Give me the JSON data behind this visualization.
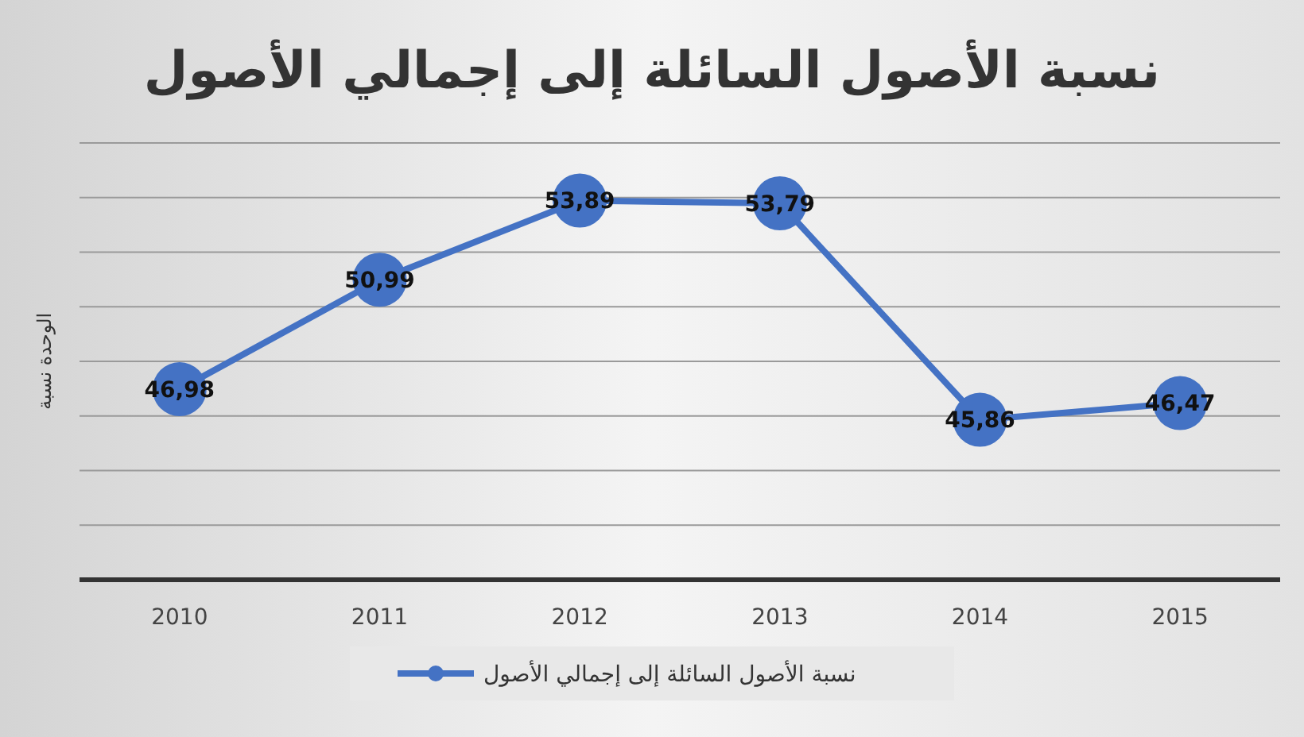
{
  "chart_data": {
    "type": "line",
    "title": "نسبة الأصول السائلة إلى إجمالي الأصول",
    "ylabel": "الوحدة نسبة",
    "categories": [
      "2010",
      "2011",
      "2012",
      "2013",
      "2014",
      "2015"
    ],
    "series": [
      {
        "name": "نسبة الأصول السائلة إلى إجمالي الأصول",
        "color": "#4472c4",
        "values": [
          46.98,
          50.99,
          53.89,
          53.79,
          45.86,
          46.47
        ],
        "value_labels": [
          "46,98",
          "50,99",
          "53,89",
          "53,79",
          "45,86",
          "46,47"
        ]
      }
    ],
    "ylim": [
      40,
      56
    ],
    "yticks": [
      {
        "value": 40,
        "label": null
      },
      {
        "value": 42,
        "label": null
      },
      {
        "value": 44,
        "label": null
      },
      {
        "value": 46,
        "label": null
      },
      {
        "value": 48,
        "label": null
      },
      {
        "value": 50,
        "label": null
      },
      {
        "value": 52,
        "label": null
      },
      {
        "value": 54,
        "label": null
      },
      {
        "value": 56,
        "label": null
      }
    ],
    "tick_labels": "x",
    "grid": "y",
    "legend": "bottom",
    "marker": "circle",
    "line_style": "solid"
  }
}
